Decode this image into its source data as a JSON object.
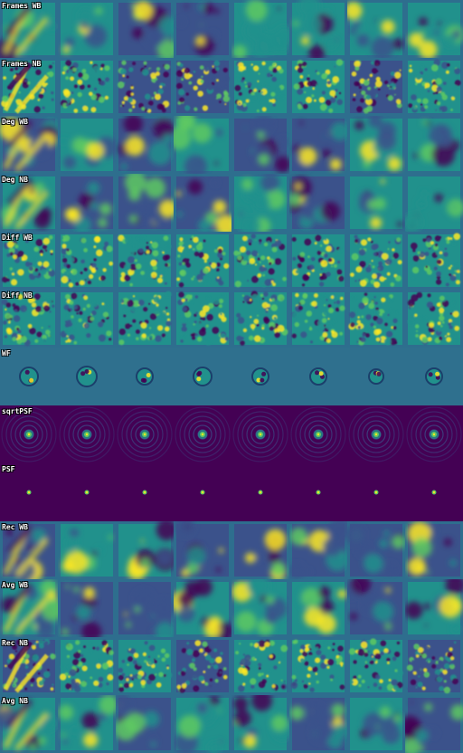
{
  "palette": {
    "viridis_dark": "#440154",
    "viridis_blue": "#3b528b",
    "viridis_teal": "#21918c",
    "viridis_green": "#5ec962",
    "viridis_yellow": "#fde725",
    "label_text": "#ffffff",
    "label_outline": "#000000"
  },
  "rows": [
    {
      "label": "Frames WB",
      "kind": "frames"
    },
    {
      "label": "Frames NB",
      "kind": "frames-noisy"
    },
    {
      "label": "Deg WB",
      "kind": "smooth"
    },
    {
      "label": "Deg NB",
      "kind": "smooth"
    },
    {
      "label": "Diff WB",
      "kind": "noise"
    },
    {
      "label": "Diff NB",
      "kind": "noise"
    },
    {
      "label": "WF",
      "kind": "wavefront"
    },
    {
      "label": "sqrtPSF",
      "kind": "sqrtpsf"
    },
    {
      "label": "PSF",
      "kind": "psf"
    },
    {
      "label": "Rec WB",
      "kind": "frames"
    },
    {
      "label": "Avg WB",
      "kind": "smooth"
    },
    {
      "label": "Rec NB",
      "kind": "frames-noisy"
    },
    {
      "label": "Avg NB",
      "kind": "smooth"
    }
  ]
}
